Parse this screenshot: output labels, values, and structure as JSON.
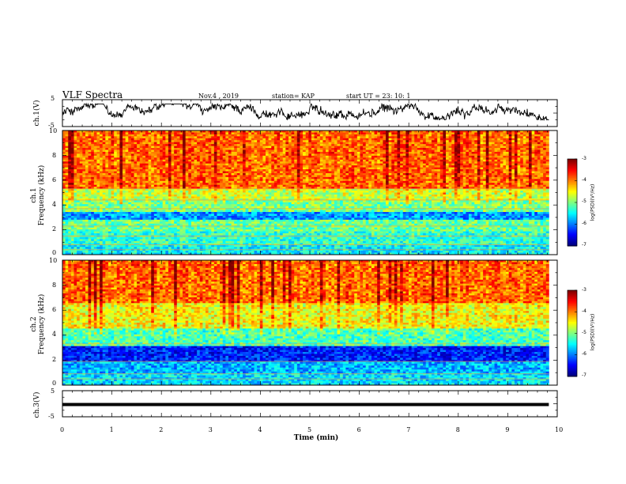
{
  "header": {
    "title": "VLF Spectra",
    "date": "Nov.4 , 2019",
    "station": "station= KAP",
    "start": "start UT = 23: 10: 1"
  },
  "chart_data": [
    {
      "type": "line",
      "ylabel": "ch.1(V)",
      "ylim": [
        -5,
        5
      ],
      "yticks": [
        "5",
        "-5"
      ],
      "xlim": [
        0,
        10
      ],
      "description_series": "waveform amplitude, approx. within -1.5..3 V"
    },
    {
      "type": "heatmap",
      "channel": "ch.1",
      "ylabel": "Frequency (kHz)",
      "ylim": [
        0,
        10
      ],
      "yticks": [
        "0",
        "2",
        "4",
        "6",
        "8",
        "10"
      ],
      "xlim": [
        0,
        9.83
      ],
      "colorbar": {
        "label": "log(PSD)(V²/Hz)",
        "range": [
          -7,
          -3
        ],
        "ticks": [
          "-3",
          "-4",
          "-5",
          "-6",
          "-7"
        ]
      },
      "bands": [
        {
          "from": 0,
          "to": 0.8,
          "level": -5.5
        },
        {
          "from": 0.8,
          "to": 1.8,
          "level": -5.3
        },
        {
          "from": 1.8,
          "to": 2.8,
          "level": -5.1
        },
        {
          "from": 2.8,
          "to": 3.5,
          "level": -5.9
        },
        {
          "from": 3.5,
          "to": 4.3,
          "level": -5.0
        },
        {
          "from": 4.3,
          "to": 5.3,
          "level": -4.7
        },
        {
          "from": 5.3,
          "to": 10,
          "level": -3.9
        }
      ]
    },
    {
      "type": "heatmap",
      "channel": "ch.2",
      "ylabel": "Frequency (kHz)",
      "ylim": [
        0,
        10
      ],
      "yticks": [
        "0",
        "2",
        "4",
        "6",
        "8",
        "10"
      ],
      "xlim": [
        0,
        9.83
      ],
      "colorbar": {
        "label": "log(PSD)(V²/Hz)",
        "range": [
          -7,
          -3
        ],
        "ticks": [
          "-3",
          "-4",
          "-5",
          "-6",
          "-7"
        ]
      },
      "bands": [
        {
          "from": 0,
          "to": 1.0,
          "level": -5.6
        },
        {
          "from": 1.0,
          "to": 1.8,
          "level": -5.8
        },
        {
          "from": 1.8,
          "to": 3.2,
          "level": -6.4
        },
        {
          "from": 3.2,
          "to": 4.5,
          "level": -5.2
        },
        {
          "from": 4.5,
          "to": 6.5,
          "level": -4.5
        },
        {
          "from": 6.5,
          "to": 10,
          "level": -3.9
        }
      ]
    },
    {
      "type": "line",
      "ylabel": "ch.3(V)",
      "ylim": [
        -5,
        5
      ],
      "yticks": [
        "5",
        "-5"
      ],
      "xlim": [
        0,
        10
      ],
      "series": [
        {
          "x": [
            0,
            9.83
          ],
          "values": [
            0,
            0
          ]
        }
      ]
    }
  ],
  "xaxis": {
    "label": "Time (min)",
    "ticks": [
      "0",
      "1",
      "2",
      "3",
      "4",
      "5",
      "6",
      "7",
      "8",
      "9",
      "10"
    ],
    "range": [
      0,
      10
    ]
  }
}
